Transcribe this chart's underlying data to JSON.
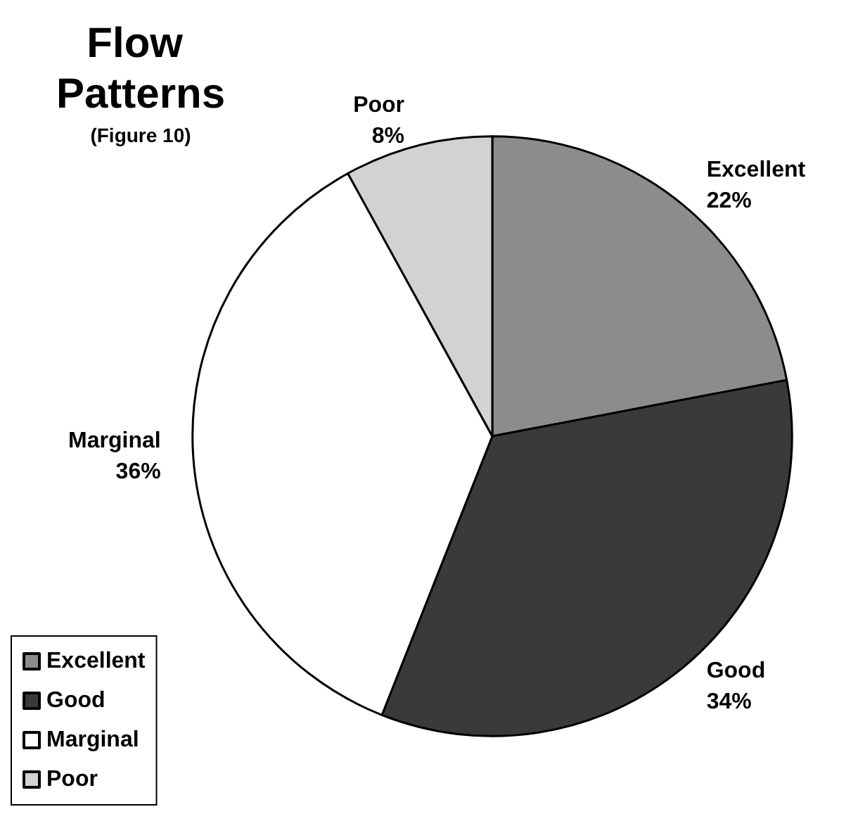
{
  "chart_data": {
    "type": "pie",
    "title": "Flow Patterns",
    "subtitle": "(Figure 10)",
    "categories": [
      "Excellent",
      "Good",
      "Marginal",
      "Poor"
    ],
    "values": [
      22,
      34,
      36,
      8
    ],
    "value_labels": [
      "22%",
      "34%",
      "36%",
      "8%"
    ],
    "colors": [
      "#8c8c8c",
      "#3a3a3a",
      "#ffffff",
      "#d2d2d2"
    ],
    "legend": "bottom left"
  }
}
